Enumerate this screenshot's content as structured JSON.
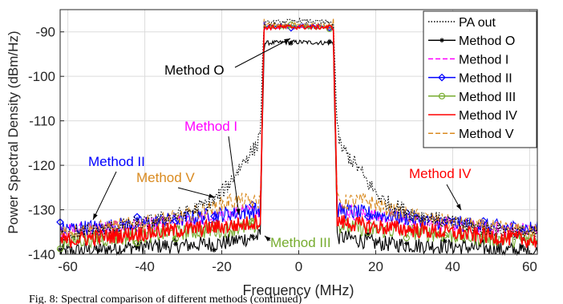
{
  "chart_data": {
    "type": "line",
    "title": "",
    "xlabel": "Frequency (MHz)",
    "ylabel": "Power Spectral Density (dBm/Hz)",
    "xlim": [
      -62,
      62
    ],
    "ylim": [
      -140,
      -85
    ],
    "xticks": [
      -60,
      -40,
      -20,
      0,
      20,
      40,
      60
    ],
    "xtick_labels": [
      "-60",
      "-40",
      "-20",
      "0",
      "20",
      "40",
      "60"
    ],
    "yticks": [
      -90,
      -100,
      -110,
      -120,
      -130,
      -140
    ],
    "ytick_labels": [
      "-90",
      "-100",
      "-110",
      "-120",
      "-130",
      "-140"
    ],
    "grid": true,
    "legend_position": "top-right",
    "series": [
      {
        "name": "PA out",
        "color": "#000000",
        "style": "dotted",
        "x": [
          -62,
          -50,
          -40,
          -30,
          -22,
          -18,
          -15,
          -13,
          -11,
          -10,
          -9,
          0,
          9,
          10,
          11,
          13,
          15,
          18,
          22,
          30,
          40,
          50,
          62
        ],
        "y": [
          -135.5,
          -134.5,
          -133,
          -131,
          -128,
          -124,
          -120,
          -117.5,
          -116,
          -112,
          -88,
          -87.5,
          -88,
          -112,
          -116,
          -118,
          -120,
          -124,
          -128,
          -131,
          -133,
          -134.5,
          -135.5
        ]
      },
      {
        "name": "Method O",
        "color": "#000000",
        "style": "solid-star",
        "x": [
          -62,
          -50,
          -40,
          -30,
          -20,
          -14,
          -10,
          -9,
          0,
          9,
          10,
          14,
          20,
          30,
          40,
          50,
          62
        ],
        "y": [
          -139.5,
          -138.8,
          -138.2,
          -138,
          -137.5,
          -136.5,
          -136,
          -92.5,
          -92.3,
          -92.5,
          -136,
          -136.5,
          -137.5,
          -138,
          -138.2,
          -138.8,
          -139.5
        ]
      },
      {
        "name": "Method I",
        "color": "#ff00ff",
        "style": "dashed",
        "x": [
          -62,
          -50,
          -40,
          -30,
          -20,
          -14,
          -10,
          -9,
          0,
          9,
          10,
          14,
          20,
          30,
          40,
          50,
          62
        ],
        "y": [
          -134.8,
          -134.2,
          -133.5,
          -132.5,
          -131.5,
          -130.5,
          -130,
          -89,
          -88.8,
          -89,
          -130,
          -130.5,
          -131.5,
          -132.5,
          -133.5,
          -134.2,
          -134.8
        ]
      },
      {
        "name": "Method II",
        "color": "#0000ff",
        "style": "solid-diamond",
        "x": [
          -62,
          -50,
          -40,
          -30,
          -20,
          -14,
          -10,
          -9,
          0,
          9,
          10,
          14,
          20,
          30,
          40,
          50,
          62
        ],
        "y": [
          -134.3,
          -133.8,
          -133,
          -132,
          -131,
          -130.5,
          -130,
          -88.7,
          -88.6,
          -88.7,
          -130,
          -130.5,
          -131,
          -132,
          -133,
          -133.8,
          -134.3
        ]
      },
      {
        "name": "Method III",
        "color": "#77ac30",
        "style": "solid-circle",
        "x": [
          -62,
          -50,
          -40,
          -30,
          -20,
          -14,
          -10,
          -9,
          0,
          9,
          10,
          14,
          20,
          30,
          40,
          50,
          62
        ],
        "y": [
          -137,
          -136.5,
          -135.8,
          -135,
          -134.5,
          -134,
          -133.5,
          -89,
          -88.8,
          -89,
          -133.5,
          -134,
          -134.5,
          -135,
          -135.8,
          -136.5,
          -137
        ]
      },
      {
        "name": "Method IV",
        "color": "#ff0000",
        "style": "solid",
        "x": [
          -62,
          -50,
          -40,
          -30,
          -20,
          -14,
          -10,
          -9,
          0,
          9,
          10,
          14,
          20,
          30,
          40,
          50,
          62
        ],
        "y": [
          -137,
          -136,
          -135.2,
          -134.5,
          -133.8,
          -133.2,
          -132.5,
          -89,
          -88.9,
          -89,
          -132.5,
          -133.2,
          -133.8,
          -134.5,
          -135.2,
          -136,
          -137
        ]
      },
      {
        "name": "Method V",
        "color": "#d98a1f",
        "style": "dashed",
        "x": [
          -62,
          -50,
          -40,
          -30,
          -22,
          -18,
          -14,
          -11,
          -10,
          -9,
          0,
          9,
          10,
          11,
          14,
          18,
          22,
          30,
          40,
          50,
          62
        ],
        "y": [
          -135,
          -134,
          -133,
          -131.5,
          -129.5,
          -128,
          -128,
          -128.5,
          -128,
          -88.5,
          -88.3,
          -88.5,
          -128,
          -128.5,
          -128,
          -128,
          -129.5,
          -131.5,
          -133,
          -134,
          -135
        ]
      }
    ],
    "annotations": [
      {
        "text": "Method O",
        "color": "#000000",
        "x": -7,
        "y": -94
      },
      {
        "text": "Method I",
        "color": "#ff00ff",
        "x": -13,
        "y": -130
      },
      {
        "text": "Method II",
        "color": "#0000ff",
        "x": -45,
        "y": -134
      },
      {
        "text": "Method V",
        "color": "#d98a1f",
        "x": -22,
        "y": -129
      },
      {
        "text": "Method III",
        "color": "#77ac30",
        "x": -10,
        "y": -136.5
      },
      {
        "text": "Method IV",
        "color": "#ff0000",
        "x": 42,
        "y": -134
      }
    ]
  },
  "caption": "Fig. 8: Spectral comparison of different methods (continued)"
}
